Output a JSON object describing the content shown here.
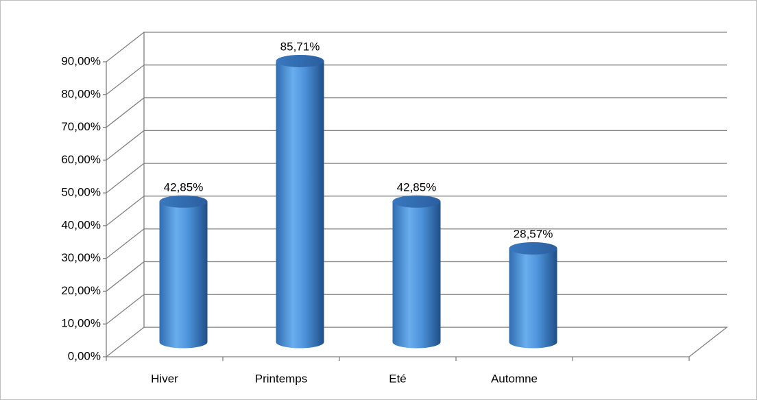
{
  "chart_data": {
    "type": "bar",
    "categories": [
      "Hiver",
      "Printemps",
      "Eté",
      "Automne",
      null
    ],
    "values": [
      42.85,
      85.71,
      42.85,
      28.57,
      null
    ],
    "value_labels": [
      "42,85%",
      "85,71%",
      "42,85%",
      "28,57%",
      null
    ],
    "color": "#4a8fd6",
    "ylim": [
      0,
      90
    ],
    "yticks": [
      {
        "value": 0,
        "label": "0,00%"
      },
      {
        "value": 10,
        "label": "10,00%"
      },
      {
        "value": 20,
        "label": "20,00%"
      },
      {
        "value": 30,
        "label": "30,00%"
      },
      {
        "value": 40,
        "label": "40,00%"
      },
      {
        "value": 50,
        "label": "50,00%"
      },
      {
        "value": 60,
        "label": "60,00%"
      },
      {
        "value": 70,
        "label": "70,00%"
      },
      {
        "value": 80,
        "label": "80,00%"
      },
      {
        "value": 90,
        "label": "90,00%"
      }
    ],
    "grid": true
  }
}
